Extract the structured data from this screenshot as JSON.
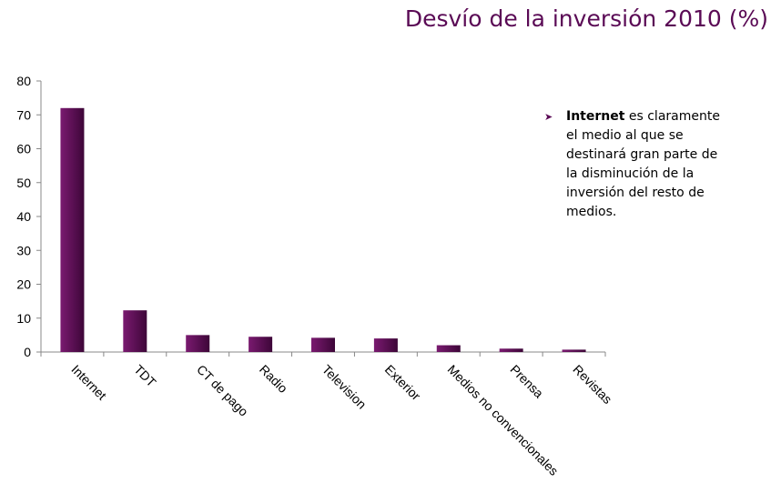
{
  "chart_data": {
    "type": "bar",
    "title": "Desvío de la inversión 2010 (%)",
    "xlabel": "",
    "ylabel": "",
    "categories": [
      "Internet",
      "TDT",
      "CT de pago",
      "Radio",
      "Television",
      "Exterior",
      "Medios no convencionales",
      "Prensa",
      "Revistas"
    ],
    "values": [
      72,
      12.3,
      5,
      4.5,
      4.2,
      4,
      2,
      1,
      0.7
    ],
    "ylim": [
      0,
      80
    ],
    "yticks": [
      0,
      10,
      20,
      30,
      40,
      50,
      60,
      70,
      80
    ],
    "grid": false,
    "legend": "none"
  },
  "note": {
    "bold": "Internet",
    "text": " es claramente el medio al que se destinará gran parte de la disminución de la inversión del resto de medios."
  },
  "colors": {
    "bar_dark": "#3d0638",
    "bar_light": "#7a1a70",
    "title": "#5a0a55",
    "axis": "#888888"
  }
}
